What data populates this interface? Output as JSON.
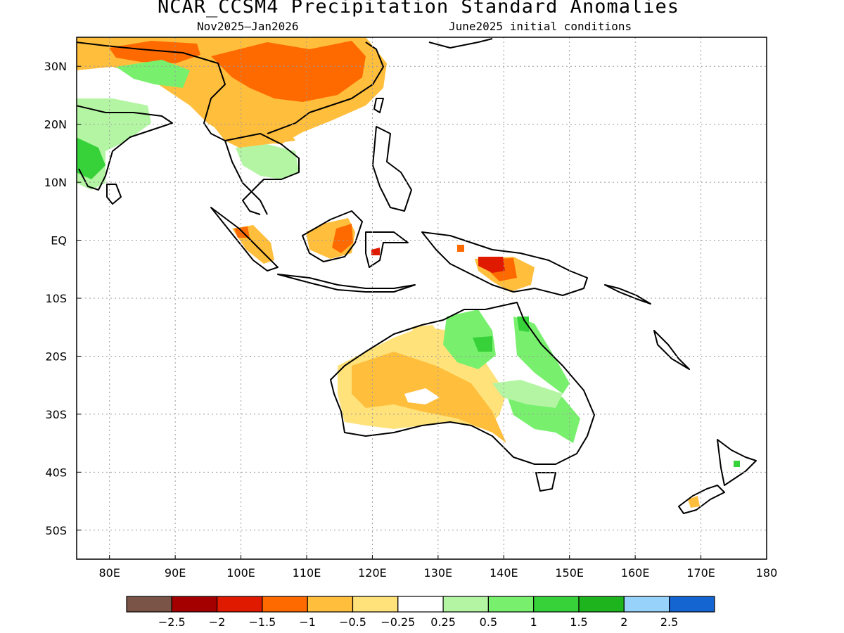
{
  "title": "NCAR_CCSM4 Precipitation Standard Anomalies",
  "subtitle_left": "Nov2025–Jan2026",
  "subtitle_right": "June2025 initial conditions",
  "map": {
    "lon_range": [
      75,
      180
    ],
    "lat_range": [
      -55,
      35
    ],
    "lon_ticks": [
      {
        "value": 80,
        "label": "80E"
      },
      {
        "value": 90,
        "label": "90E"
      },
      {
        "value": 100,
        "label": "100E"
      },
      {
        "value": 110,
        "label": "110E"
      },
      {
        "value": 120,
        "label": "120E"
      },
      {
        "value": 130,
        "label": "130E"
      },
      {
        "value": 140,
        "label": "140E"
      },
      {
        "value": 150,
        "label": "150E"
      },
      {
        "value": 160,
        "label": "160E"
      },
      {
        "value": 170,
        "label": "170E"
      },
      {
        "value": 180,
        "label": "180"
      }
    ],
    "lat_ticks": [
      {
        "value": 30,
        "label": "30N"
      },
      {
        "value": 20,
        "label": "20N"
      },
      {
        "value": 10,
        "label": "10N"
      },
      {
        "value": 0,
        "label": "EQ"
      },
      {
        "value": -10,
        "label": "10S"
      },
      {
        "value": -20,
        "label": "20S"
      },
      {
        "value": -30,
        "label": "30S"
      },
      {
        "value": -40,
        "label": "40S"
      },
      {
        "value": -50,
        "label": "50S"
      }
    ],
    "grid": true
  },
  "colorbar": {
    "colors": [
      "#7a5446",
      "#a50000",
      "#e01a00",
      "#ff6a00",
      "#ffbe3c",
      "#ffe27a",
      "#ffffff",
      "#b4f5a4",
      "#78f06e",
      "#37d23a",
      "#1eb41e",
      "#96d2fa",
      "#1464d2"
    ],
    "labels": [
      "−2.5",
      "−2",
      "−1.5",
      "−1",
      "−0.5",
      "−0.25",
      "0.25",
      "0.5",
      "1",
      "1.5",
      "2",
      "2.5"
    ]
  }
}
